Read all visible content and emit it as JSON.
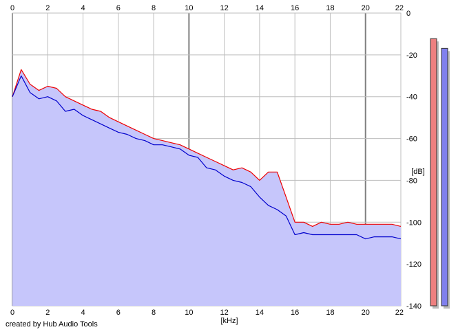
{
  "footer": {
    "credit": "created by Hub Audio Tools"
  },
  "colors": {
    "background": "#ffffff",
    "grid": "#bdbdbd",
    "grid_major": "#7f7f7f",
    "fill": "#c6c6fb",
    "left_channel": "#ee0000",
    "right_channel": "#0000cc",
    "meter_left": "#ee8080",
    "meter_right": "#8080ee",
    "meter_shadow": "#bcbcbc"
  },
  "chart_data": {
    "type": "line",
    "title": "",
    "xlabel": "[kHz]",
    "ylabel": "[dB]",
    "xlim": [
      0,
      22
    ],
    "ylim": [
      -140,
      0
    ],
    "x_ticks": [
      "0",
      "2",
      "4",
      "6",
      "8",
      "10",
      "12",
      "14",
      "16",
      "18",
      "20",
      "22"
    ],
    "y_ticks": [
      "0",
      "-20",
      "-40",
      "-60",
      "-80",
      "-100",
      "-120",
      "-140"
    ],
    "grid": true,
    "legend": "none",
    "x": [
      0,
      0.5,
      1,
      1.5,
      2,
      2.5,
      3,
      3.5,
      4,
      4.5,
      5,
      5.5,
      6,
      6.5,
      7,
      7.5,
      8,
      8.5,
      9,
      9.5,
      10,
      10.5,
      11,
      11.5,
      12,
      12.5,
      13,
      13.5,
      14,
      14.5,
      15,
      15.5,
      16,
      16.5,
      17,
      17.5,
      18,
      18.5,
      19,
      19.5,
      20,
      20.5,
      21,
      21.5,
      22
    ],
    "series": [
      {
        "color": "#ee0000",
        "values": [
          -40,
          -27,
          -34,
          -37,
          -35,
          -36,
          -40,
          -42,
          -44,
          -46,
          -47,
          -50,
          -52,
          -54,
          -56,
          -58,
          -60,
          -61,
          -62,
          -63,
          -65,
          -67,
          -69,
          -71,
          -73,
          -75,
          -74,
          -76,
          -80,
          -76,
          -76,
          -88,
          -100,
          -100,
          -102,
          -100,
          -101,
          -101,
          -100,
          -101,
          -101,
          -101,
          -101,
          -101,
          -102
        ]
      },
      {
        "color": "#0000cc",
        "values": [
          -40,
          -30,
          -38,
          -41,
          -40,
          -42,
          -47,
          -46,
          -49,
          -51,
          -53,
          -55,
          -57,
          -58,
          -60,
          -61,
          -63,
          -63,
          -64,
          -65,
          -68,
          -69,
          -74,
          -75,
          -78,
          -80,
          -81,
          -83,
          -88,
          -92,
          -94,
          -97,
          -106,
          -105,
          -106,
          -106,
          -106,
          -106,
          -106,
          -106,
          -108,
          -107,
          -107,
          -107,
          -108
        ]
      }
    ],
    "meters": [
      {
        "channel": "left",
        "color": "#ee8080",
        "level_db": -6
      },
      {
        "channel": "right",
        "color": "#8080ee",
        "level_db": -8
      }
    ]
  }
}
